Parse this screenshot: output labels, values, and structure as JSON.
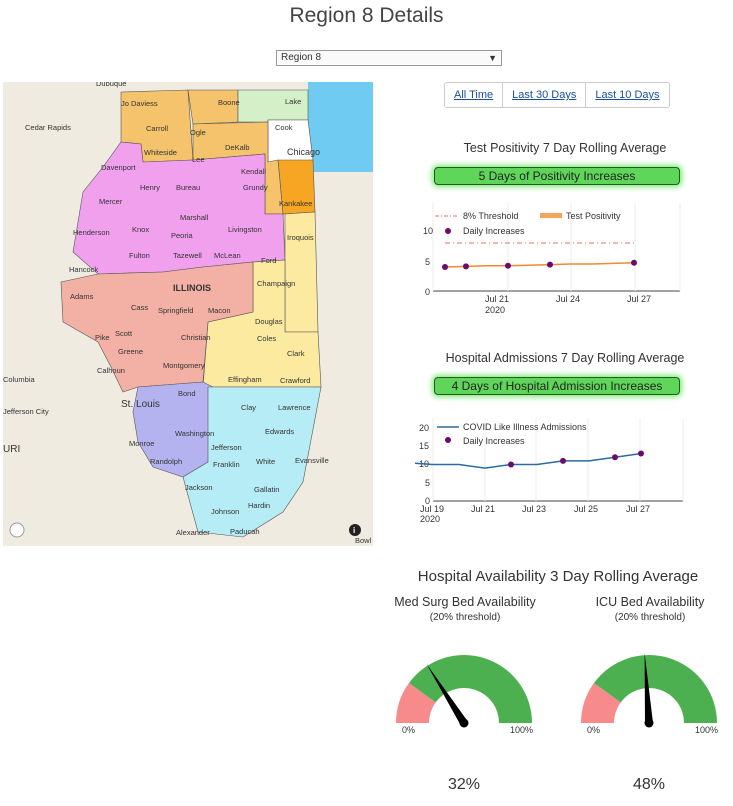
{
  "page_title": "Region 8 Details",
  "region_select": {
    "value": "Region 8"
  },
  "time_buttons": [
    "All Time",
    "Last 30 Days",
    "Last 10 Days"
  ],
  "map": {
    "state_label": "ILLINOIS",
    "region_labels": [
      "Jo Daviess",
      "Boone",
      "Lake",
      "Carroll",
      "Ogle",
      "Cook",
      "Whiteside",
      "DeKalb",
      "Chicago",
      "Lee",
      "Kendall",
      "Henry",
      "Bureau",
      "Grundy",
      "Mercer",
      "Kankakee",
      "Marshall",
      "Henderson",
      "Knox",
      "Livingston",
      "Iroquois",
      "Peoria",
      "Fulton",
      "Tazewell",
      "McLean",
      "Ford",
      "Hancock",
      "Champaign",
      "Adams",
      "Springfield",
      "Macon",
      "Cass",
      "Douglas",
      "Pike",
      "Scott",
      "Christian",
      "Coles",
      "Greene",
      "Clark",
      "Montgomery",
      "Calhoun",
      "Effingham",
      "Crawford",
      "Clay",
      "Lawrence",
      "Bond",
      "St. Louis",
      "Washington",
      "Edwards",
      "Monroe",
      "Jefferson",
      "Randolph",
      "Franklin",
      "White",
      "Evansville",
      "Jackson",
      "Gallatin",
      "Hardin",
      "Johnson",
      "Alexander",
      "Paducah",
      "Dubuque",
      "Cedar Rapids",
      "Davenport",
      "Columbia",
      "Jefferson City",
      "URI",
      "Bowl"
    ],
    "region_colors": {
      "orange": "#f5c36b",
      "green": "#d4f0c8",
      "pink": "#f1a0ee",
      "salmon": "#f3b0a4",
      "yellow": "#fbeaa0",
      "lavender": "#b4b3f0",
      "cyan": "#b6ecf5",
      "darkorange": "#f6a623",
      "water": "#70cbf2"
    }
  },
  "positivity": {
    "title": "Test Positivity 7 Day Rolling Average",
    "banner": "5 Days of Positivity Increases",
    "legend": [
      "8% Threshold",
      "Test Positivity",
      "Daily Increases"
    ],
    "y_ticks": [
      "10",
      "5",
      "0"
    ],
    "x_ticks": [
      "Jul 21",
      "Jul 24",
      "Jul 27"
    ],
    "x_year": "2020"
  },
  "admissions": {
    "title": "Hospital Admissions 7 Day Rolling Average",
    "banner": "4 Days of Hospital Admission Increases",
    "legend": [
      "COVID Like Illness Admissions",
      "Daily Increases"
    ],
    "y_ticks": [
      "20",
      "15",
      "10",
      "5",
      "0"
    ],
    "x_ticks": [
      "Jul 19",
      "Jul 21",
      "Jul 23",
      "Jul 25",
      "Jul 27"
    ],
    "x_year": "2020"
  },
  "availability": {
    "title": "Hospital Availability 3 Day Rolling Average",
    "med_surg": {
      "title": "Med Surg Bed Availability",
      "subtitle": "(20% threshold)",
      "min": "0%",
      "max": "100%",
      "value_label": "32%",
      "value": 0.32
    },
    "icu": {
      "title": "ICU Bed Availability",
      "subtitle": "(20% threshold)",
      "min": "0%",
      "max": "100%",
      "value_label": "48%",
      "value": 0.48
    },
    "threshold": 0.2,
    "colors": {
      "ok": "#4caf50",
      "low": "#f78b8b"
    }
  },
  "chart_data": [
    {
      "type": "line",
      "title": "Test Positivity 7 Day Rolling Average",
      "x": [
        "2020-07-19",
        "2020-07-20",
        "2020-07-21",
        "2020-07-22",
        "2020-07-23",
        "2020-07-24",
        "2020-07-25",
        "2020-07-26",
        "2020-07-27",
        "2020-07-28"
      ],
      "series": [
        {
          "name": "8% Threshold",
          "values": [
            8,
            8,
            8,
            8,
            8,
            8,
            8,
            8,
            8,
            8
          ]
        },
        {
          "name": "Test Positivity",
          "values": [
            4.0,
            4.1,
            4.2,
            4.2,
            4.3,
            4.4,
            4.5,
            4.5,
            4.6,
            4.7
          ]
        }
      ],
      "increases": {
        "name": "Daily Increases",
        "x": [
          "2020-07-19",
          "2020-07-20",
          "2020-07-22",
          "2020-07-24",
          "2020-07-28"
        ],
        "y": [
          4.0,
          4.1,
          4.2,
          4.4,
          4.7
        ]
      },
      "ylim": [
        0,
        12
      ]
    },
    {
      "type": "line",
      "title": "Hospital Admissions 7 Day Rolling Average",
      "x": [
        "2020-07-18",
        "2020-07-19",
        "2020-07-20",
        "2020-07-21",
        "2020-07-22",
        "2020-07-23",
        "2020-07-24",
        "2020-07-25",
        "2020-07-26",
        "2020-07-27",
        "2020-07-28"
      ],
      "series": [
        {
          "name": "COVID Like Illness Admissions",
          "values": [
            11,
            10.5,
            10,
            10,
            9,
            10,
            10,
            11,
            11,
            12,
            13
          ]
        }
      ],
      "increases": {
        "name": "Daily Increases",
        "x": [
          "2020-07-23",
          "2020-07-25",
          "2020-07-27",
          "2020-07-28"
        ],
        "y": [
          10,
          11,
          12,
          13
        ]
      },
      "ylim": [
        0,
        22
      ]
    }
  ]
}
